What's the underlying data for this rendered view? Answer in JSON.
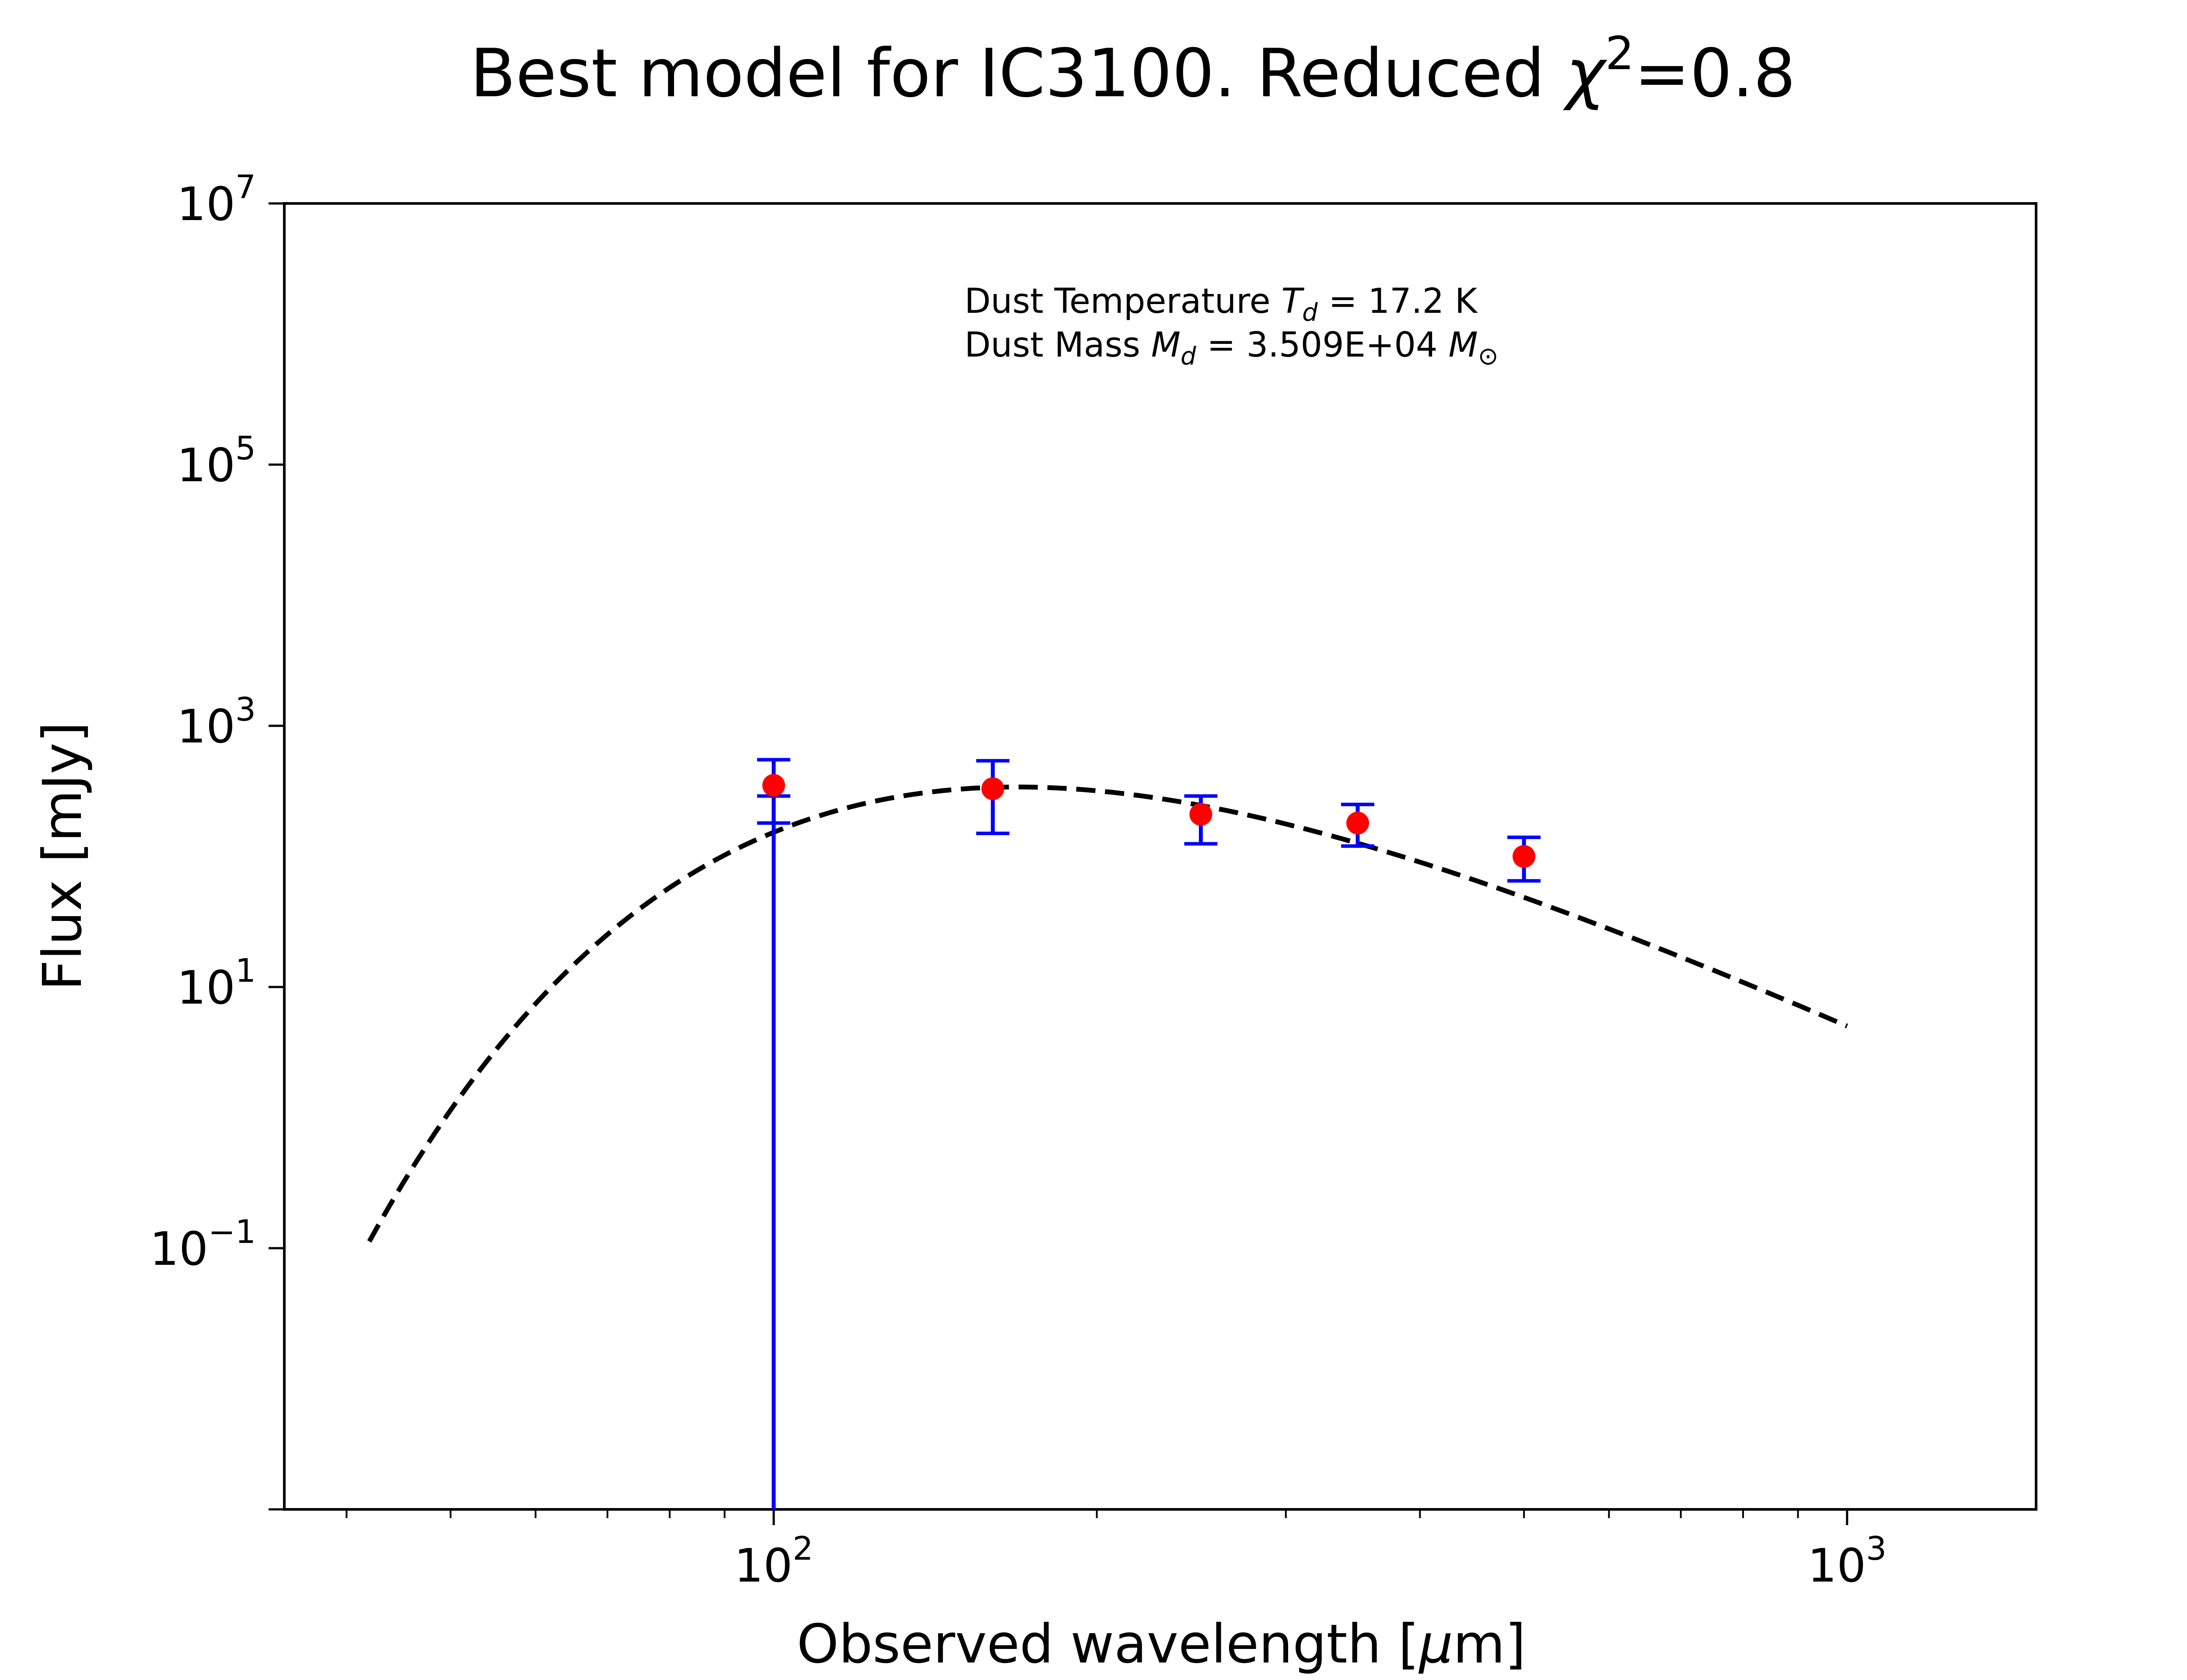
{
  "chart_data": {
    "type": "scatter",
    "title": {
      "prefix": "Best model for IC3100. Reduced ",
      "symbol": "χ",
      "sup": "2",
      "suffix": "=0.8"
    },
    "xlabel": {
      "prefix": "Observed wavelength [",
      "mu": "μ",
      "suffix": "m]"
    },
    "ylabel": "Flux [mJy]",
    "xscale": "log",
    "yscale": "log",
    "xlim": [
      35,
      1500
    ],
    "ylim": [
      0.001,
      10000000
    ],
    "x_ticks": [
      {
        "value": 100,
        "base": "10",
        "exp": "2"
      },
      {
        "value": 1000,
        "base": "10",
        "exp": "3"
      }
    ],
    "y_ticks": [
      {
        "value": 0.1,
        "base": "10",
        "exp": "−1"
      },
      {
        "value": 10,
        "base": "10",
        "exp": "1"
      },
      {
        "value": 1000,
        "base": "10",
        "exp": "3"
      },
      {
        "value": 100000,
        "base": "10",
        "exp": "5"
      },
      {
        "value": 10000000,
        "base": "10",
        "exp": "7"
      }
    ],
    "grid": false,
    "observations": [
      {
        "x": 100,
        "y": 350,
        "yerr_low": 180,
        "yerr_high": 550
      },
      {
        "x": 100,
        "y": 260,
        "yerr_low": 0.001,
        "yerr_high": 290
      },
      {
        "x": 160,
        "y": 330,
        "yerr_low": 150,
        "yerr_high": 540
      },
      {
        "x": 250,
        "y": 210,
        "yerr_low": 125,
        "yerr_high": 290
      },
      {
        "x": 350,
        "y": 180,
        "yerr_low": 120,
        "yerr_high": 250
      },
      {
        "x": 500,
        "y": 100,
        "yerr_low": 65,
        "yerr_high": 140
      }
    ],
    "model": {
      "style": "dashed",
      "temperature_K": 17.2,
      "peak_x": 175,
      "peak_y": 340,
      "x_range": [
        42,
        1000
      ]
    },
    "annotation": {
      "line1": {
        "prefix": "Dust Temperature ",
        "sym": "T",
        "sub": "d",
        "suffix": " = 17.2 K"
      },
      "line2": {
        "prefix": "Dust Mass ",
        "sym": "M",
        "sub": "d",
        "value": " = 3.509E+04 ",
        "unit": "M",
        "unit_sub": "⊙"
      }
    },
    "colors": {
      "points": "#ff0000",
      "errorbars": "#0000ff",
      "model": "#000000"
    }
  }
}
